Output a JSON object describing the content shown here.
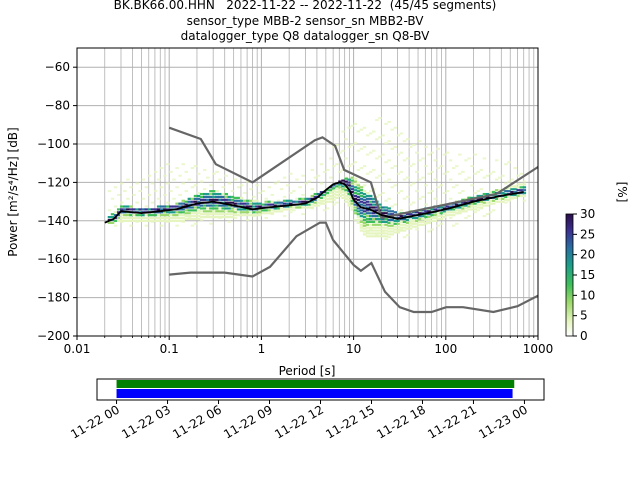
{
  "title": {
    "line1": "BK.BK66.00.HHN   2022-11-22 -- 2022-11-22  (45/45 segments)",
    "line2": "sensor_type MBB-2 sensor_sn MBB2-BV",
    "line3": "datalogger_type Q8 datalogger_sn Q8-BV"
  },
  "chart_data": [
    {
      "type": "heatmap",
      "xlabel": "Period [s]",
      "ylabel": "Power [m²/s⁴/Hz] [dB]",
      "x_scale": "log",
      "xlim": [
        0.01,
        1000
      ],
      "ylim": [
        -200,
        -50
      ],
      "x_ticks": [
        "0.01",
        "0.1",
        "1",
        "10",
        "100",
        "1000"
      ],
      "y_ticks": [
        "−200",
        "−180",
        "−160",
        "−140",
        "−120",
        "−100",
        "−80",
        "−60"
      ],
      "grid": true,
      "colorbar": {
        "label": "[%]",
        "ticks": [
          "0",
          "5",
          "10",
          "15",
          "20",
          "25",
          "30"
        ],
        "range": [
          0,
          30
        ],
        "colors": [
          "#ffffff",
          "#e6f5c0",
          "#9bd86b",
          "#3fbf5a",
          "#1e9e8a",
          "#2a6fa0",
          "#3b3290",
          "#2a0e4a"
        ]
      },
      "mode_curve": {
        "name": "mode",
        "color": "#000000",
        "x": [
          0.02,
          0.025,
          0.03,
          0.05,
          0.08,
          0.12,
          0.2,
          0.3,
          0.5,
          0.8,
          1.2,
          2,
          3,
          4,
          5,
          6,
          7,
          8,
          9,
          10,
          12,
          15,
          20,
          30,
          50,
          80,
          120,
          200,
          400,
          700
        ],
        "y": [
          -141,
          -139,
          -135,
          -136,
          -135,
          -134,
          -131,
          -130,
          -132,
          -134,
          -133,
          -132,
          -131,
          -128,
          -124,
          -121,
          -120,
          -121,
          -124,
          -129,
          -133,
          -134,
          -137,
          -139,
          -137,
          -135,
          -133,
          -130,
          -127,
          -125
        ]
      },
      "noise_models": [
        {
          "name": "NHNM",
          "color": "#666666",
          "x": [
            0.1,
            0.22,
            0.32,
            0.8,
            3.8,
            4.6,
            6.3,
            7.9,
            15.4,
            20,
            354.8,
            1000
          ],
          "y": [
            -91.5,
            -97.4,
            -110.5,
            -120,
            -98,
            -96.5,
            -101,
            -113.5,
            -120,
            -138.5,
            -126,
            -112
          ]
        },
        {
          "name": "NLNM",
          "color": "#666666",
          "x": [
            0.1,
            0.17,
            0.4,
            0.8,
            1.24,
            2.4,
            4.3,
            5,
            6,
            10,
            12,
            15.6,
            21.9,
            31.6,
            45,
            70,
            101,
            154,
            328,
            600,
            1000
          ],
          "y": [
            -168,
            -167,
            -167,
            -169,
            -164,
            -148,
            -141,
            -141,
            -150,
            -163,
            -166,
            -162,
            -177,
            -185,
            -187.5,
            -187.5,
            -185,
            -185,
            -187.5,
            -184.5,
            -179
          ]
        }
      ],
      "density_band": {
        "x": [
          0.02,
          0.03,
          0.05,
          0.1,
          0.2,
          0.3,
          0.5,
          1,
          2,
          3,
          5,
          7,
          10,
          12,
          15,
          20,
          30,
          50,
          100,
          200,
          400,
          700
        ],
        "upper": [
          -140,
          -133,
          -134,
          -133,
          -127,
          -125,
          -128,
          -131,
          -130,
          -129,
          -124,
          -119,
          -118,
          -124,
          -128,
          -133,
          -137,
          -135,
          -132,
          -128,
          -124,
          -121
        ],
        "lower": [
          -142,
          -140,
          -141,
          -141,
          -139,
          -139,
          -138,
          -137,
          -134,
          -134,
          -131,
          -127,
          -137,
          -147,
          -149,
          -149,
          -146,
          -143,
          -138,
          -134,
          -130,
          -127
        ]
      },
      "sparse_band": {
        "x": [
          0.02,
          0.05,
          0.1,
          0.3,
          1,
          3,
          5,
          8,
          10,
          20,
          40,
          100,
          200,
          500,
          700
        ],
        "upper": [
          -122,
          -116,
          -110,
          -113,
          -121,
          -113,
          -106,
          -90,
          -87,
          -86,
          -96,
          -104,
          -106,
          -110,
          -115
        ],
        "lower": [
          -143,
          -142,
          -143,
          -141,
          -139,
          -136,
          -134,
          -131,
          -140,
          -152,
          -147,
          -143,
          -139,
          -131,
          -129
        ]
      }
    },
    {
      "type": "timeline",
      "x_ticks": [
        "11-22 00",
        "11-22 03",
        "11-22 06",
        "11-22 09",
        "11-22 12",
        "11-22 15",
        "11-22 18",
        "11-22 21",
        "11-23 00"
      ],
      "xlim_hours": [
        -1.15,
        25.15
      ],
      "bars": [
        {
          "name": "data",
          "color": "#008000",
          "start_hour": 0,
          "end_hour": 23.4
        },
        {
          "name": "psd",
          "color": "#0000ff",
          "start_hour": 0,
          "end_hour": 23.3
        }
      ]
    }
  ]
}
